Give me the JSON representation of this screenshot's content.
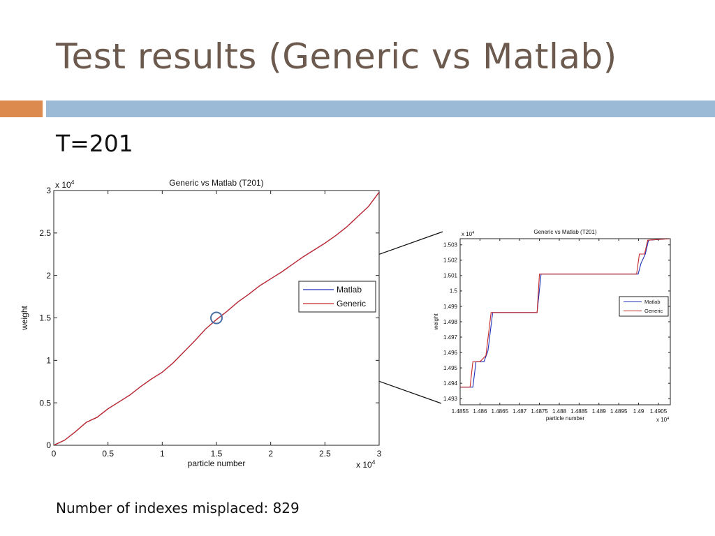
{
  "slide": {
    "title": "Test results (Generic vs Matlab)",
    "subtitle": "T=201",
    "footnote": "Number of indexes misplaced: 829",
    "accent_color": "#dd8a4f",
    "bar_color": "#9bbad6",
    "title_color": "#6b5a4d"
  },
  "chart_data": [
    {
      "type": "line",
      "title": "Generic vs Matlab (T201)",
      "xlabel": "particle number",
      "ylabel": "weight",
      "x_multiplier": "x 10",
      "x_multiplier_exp": "4",
      "y_multiplier": "x 10",
      "y_multiplier_exp": "4",
      "xlim": [
        0,
        30000
      ],
      "ylim": [
        0,
        30000
      ],
      "xticks": [
        "0",
        "0.5",
        "1",
        "1.5",
        "2",
        "2.5",
        "3"
      ],
      "yticks": [
        "0",
        "0.5",
        "1",
        "1.5",
        "2",
        "2.5",
        "3"
      ],
      "legend_position": "right-middle",
      "highlight_circle": {
        "x": 15000,
        "y": 15000
      },
      "series": [
        {
          "name": "Matlab",
          "color": "#1f2fb8",
          "x": [
            0,
            1000,
            2000,
            3000,
            4000,
            5000,
            6000,
            7000,
            8000,
            9000,
            10000,
            11000,
            12000,
            13000,
            14000,
            15000,
            16000,
            17000,
            18000,
            19000,
            20000,
            21000,
            22000,
            23000,
            24000,
            25000,
            26000,
            27000,
            28000,
            29000,
            30000
          ],
          "y": [
            0,
            600,
            1600,
            2700,
            3300,
            4300,
            5100,
            5900,
            6900,
            7800,
            8600,
            9700,
            11000,
            12300,
            13700,
            14800,
            15800,
            16900,
            17800,
            18800,
            19600,
            20400,
            21300,
            22200,
            23000,
            23800,
            24700,
            25700,
            26900,
            28100,
            29800
          ]
        },
        {
          "name": "Generic",
          "color": "#c82a2a",
          "x": [
            0,
            1000,
            2000,
            3000,
            4000,
            5000,
            6000,
            7000,
            8000,
            9000,
            10000,
            11000,
            12000,
            13000,
            14000,
            15000,
            16000,
            17000,
            18000,
            19000,
            20000,
            21000,
            22000,
            23000,
            24000,
            25000,
            26000,
            27000,
            28000,
            29000,
            30000
          ],
          "y": [
            0,
            600,
            1600,
            2700,
            3300,
            4300,
            5100,
            5900,
            6900,
            7800,
            8600,
            9700,
            11000,
            12300,
            13700,
            14800,
            15800,
            16900,
            17800,
            18800,
            19600,
            20400,
            21300,
            22200,
            23000,
            23800,
            24700,
            25700,
            26900,
            28100,
            29800
          ]
        }
      ]
    },
    {
      "type": "line",
      "title": "Generic vs Matlab (T201)",
      "xlabel": "particle number",
      "ylabel": "weight",
      "x_multiplier": "x 10",
      "x_multiplier_exp": "4",
      "y_multiplier": "x 10",
      "y_multiplier_exp": "4",
      "xlim": [
        14855,
        14908
      ],
      "ylim": [
        14926,
        15034
      ],
      "xticks": [
        "1.4855",
        "1.486",
        "1.4865",
        "1.487",
        "1.4875",
        "1.488",
        "1.4885",
        "1.489",
        "1.4895",
        "1.49",
        "1.4905"
      ],
      "xtick_values": [
        14855,
        14860,
        14865,
        14870,
        14875,
        14880,
        14885,
        14890,
        14895,
        14900,
        14905
      ],
      "yticks": [
        "1.493",
        "1.494",
        "1.495",
        "1.496",
        "1.497",
        "1.498",
        "1.499",
        "1.5",
        "1.501",
        "1.502",
        "1.503"
      ],
      "ytick_values": [
        14930,
        14940,
        14950,
        14960,
        14970,
        14980,
        14990,
        15000,
        15010,
        15020,
        15030
      ],
      "legend_position": "right-middle",
      "series": [
        {
          "name": "Matlab",
          "color": "#1f2fb8",
          "x": [
            14855,
            14858.2,
            14859,
            14861,
            14862,
            14863.2,
            14874.4,
            14875.4,
            14899.9,
            14900.6,
            14901.7,
            14902.5,
            14908
          ],
          "y": [
            14937.5,
            14937.5,
            14954,
            14954,
            14961,
            14986,
            14986,
            15011,
            15011,
            15018,
            15024,
            15033,
            15034
          ]
        },
        {
          "name": "Generic",
          "color": "#c82a2a",
          "x": [
            14855,
            14857.5,
            14858.2,
            14860,
            14861.5,
            14862.8,
            14874.4,
            14875,
            14899.5,
            14900.2,
            14901.5,
            14902.3,
            14908
          ],
          "y": [
            14937.5,
            14937.5,
            14954,
            14954,
            14958,
            14986,
            14986,
            15011,
            15011,
            15024,
            15024,
            15033,
            15034
          ]
        }
      ]
    }
  ]
}
